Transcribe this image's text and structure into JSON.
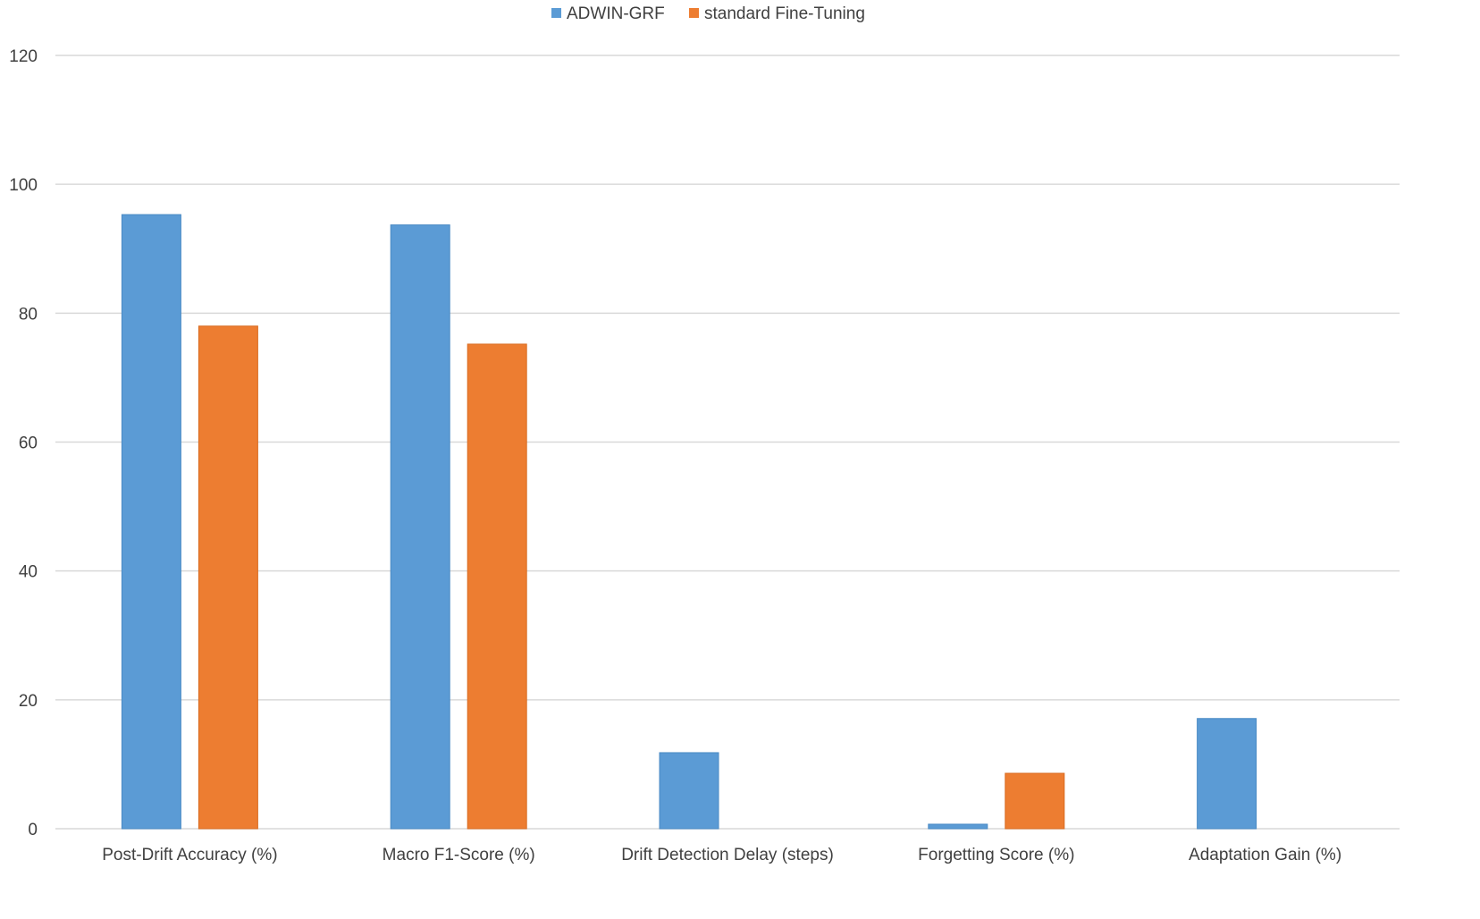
{
  "chart_data": {
    "type": "bar",
    "categories": [
      "Post-Drift Accuracy (%)",
      "Macro F1-Score (%)",
      "Drift Detection Delay (steps)",
      "Forgetting Score (%)",
      "Adaptation Gain (%)"
    ],
    "series": [
      {
        "name": "ADWIN-GRF",
        "color": "#5b9bd5",
        "values": [
          95.3,
          93.7,
          11.8,
          0.7,
          17.1
        ]
      },
      {
        "name": "standard Fine-Tuning",
        "color": "#ed7d31",
        "values": [
          78.0,
          75.2,
          0,
          8.6,
          0
        ]
      }
    ],
    "ylim": [
      0,
      120
    ],
    "yticks": [
      0,
      20,
      40,
      60,
      80,
      100,
      120
    ],
    "grid": true,
    "legend_position": "top-center"
  }
}
